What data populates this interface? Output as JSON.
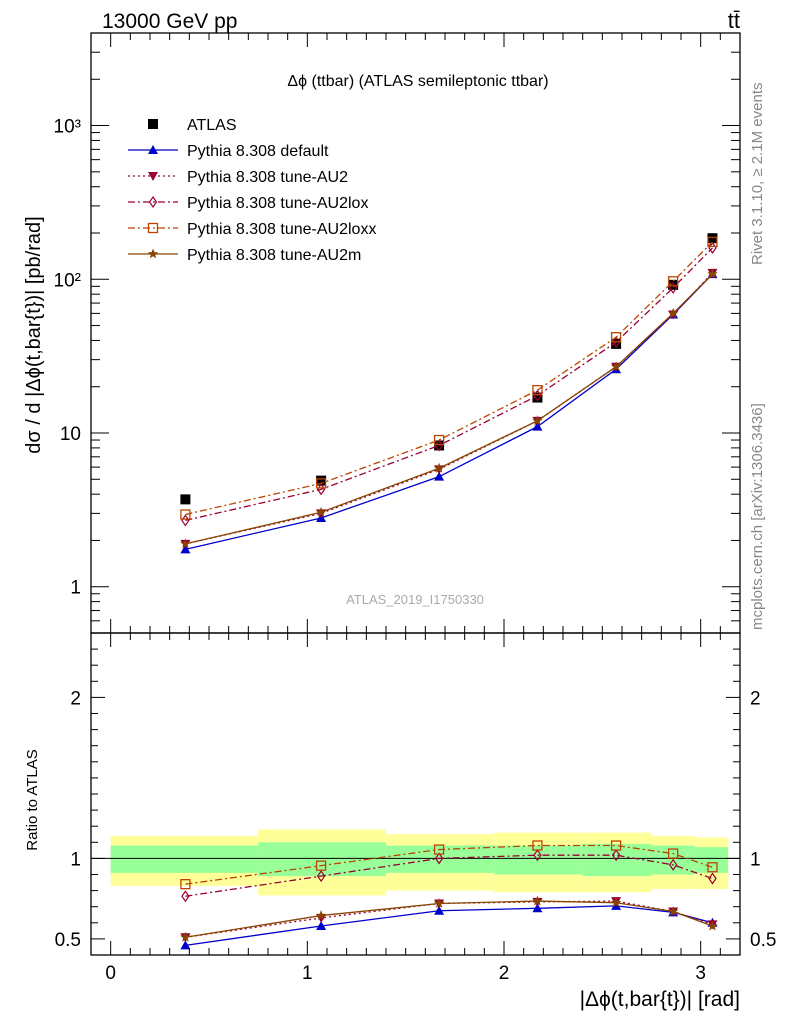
{
  "header": {
    "left": "13000 GeV pp",
    "right": "tt̄"
  },
  "side_labels": {
    "rivet": "Rivet 3.1.10, ≥ 2.1M events",
    "mcplots": "mcplots.cern.ch [arXiv:1306.3436]"
  },
  "chart_data": [
    {
      "type": "scatter",
      "title": "Δϕ (ttbar) (ATLAS semileptonic ttbar)",
      "watermark": "ATLAS_2019_I1750330",
      "xlabel": "|Δϕ(t,bar{t})| [rad]",
      "ylabel": "dσ / d |Δϕ(t,bar{t})| [pb/rad]",
      "yscale": "log",
      "ylim": [
        0.5,
        4000
      ],
      "xlim": [
        -0.1,
        3.2
      ],
      "y_ticks": [
        {
          "value": 1,
          "label": "1"
        },
        {
          "value": 10,
          "label": "10"
        },
        {
          "value": 100,
          "label": "10²"
        },
        {
          "value": 1000,
          "label": "10³"
        }
      ],
      "legend_position": "top-left",
      "x": [
        0.38,
        1.07,
        1.67,
        2.17,
        2.57,
        2.86,
        3.06
      ],
      "series": [
        {
          "name": "ATLAS",
          "color": "#000000",
          "marker": "filled-square",
          "line": "none",
          "values": [
            3.7,
            4.9,
            8.3,
            17,
            38,
            92,
            185
          ]
        },
        {
          "name": "Pythia 8.308 default",
          "color": "#0000cc",
          "marker": "filled-triangle-up",
          "line": "solid",
          "values": [
            1.75,
            2.8,
            5.2,
            11,
            26,
            59,
            108
          ]
        },
        {
          "name": "Pythia 8.308 tune-AU2",
          "color": "#990033",
          "marker": "filled-triangle-down",
          "line": "dotted",
          "values": [
            1.9,
            3.0,
            5.8,
            12,
            27,
            59,
            110
          ]
        },
        {
          "name": "Pythia 8.308 tune-AU2lox",
          "color": "#990033",
          "marker": "open-diamond",
          "line": "dashdot",
          "values": [
            2.7,
            4.3,
            8.3,
            17.5,
            39,
            88,
            160
          ]
        },
        {
          "name": "Pythia 8.308 tune-AU2loxx",
          "color": "#bb4400",
          "marker": "open-square",
          "line": "dashdot",
          "values": [
            2.95,
            4.7,
            9.0,
            19,
            42,
            97,
            175
          ]
        },
        {
          "name": "Pythia 8.308 tune-AU2m",
          "color": "#884400",
          "marker": "star",
          "line": "solid",
          "values": [
            1.9,
            3.05,
            5.9,
            12,
            27,
            60,
            108
          ]
        }
      ]
    },
    {
      "type": "scatter",
      "ylabel": "Ratio to ATLAS",
      "xlabel": "|Δϕ(t,bar{t})| [rad]",
      "ylim": [
        0.4,
        2.4
      ],
      "xlim": [
        -0.1,
        3.2
      ],
      "y_ticks": [
        {
          "value": 0.5,
          "label": "0.5"
        },
        {
          "value": 1,
          "label": "1"
        },
        {
          "value": 2,
          "label": "2"
        }
      ],
      "x_ticks": [
        {
          "value": 0,
          "label": "0"
        },
        {
          "value": 1,
          "label": "1"
        },
        {
          "value": 2,
          "label": "2"
        },
        {
          "value": 3,
          "label": "3"
        }
      ],
      "uncertainty_bands": [
        {
          "x_from": 0.0,
          "x_to": 0.75,
          "stat_low": 0.91,
          "stat_high": 1.08,
          "total_low": 0.83,
          "total_high": 1.14
        },
        {
          "x_from": 0.75,
          "x_to": 1.4,
          "stat_low": 0.89,
          "stat_high": 1.1,
          "total_low": 0.77,
          "total_high": 1.18
        },
        {
          "x_from": 1.4,
          "x_to": 1.95,
          "stat_low": 0.91,
          "stat_high": 1.08,
          "total_low": 0.8,
          "total_high": 1.15
        },
        {
          "x_from": 1.95,
          "x_to": 2.4,
          "stat_low": 0.9,
          "stat_high": 1.08,
          "total_low": 0.79,
          "total_high": 1.16
        },
        {
          "x_from": 2.4,
          "x_to": 2.75,
          "stat_low": 0.89,
          "stat_high": 1.09,
          "total_low": 0.79,
          "total_high": 1.16
        },
        {
          "x_from": 2.75,
          "x_to": 2.97,
          "stat_low": 0.9,
          "stat_high": 1.08,
          "total_low": 0.81,
          "total_high": 1.14
        },
        {
          "x_from": 2.97,
          "x_to": 3.14,
          "stat_low": 0.91,
          "stat_high": 1.07,
          "total_low": 0.81,
          "total_high": 1.13
        }
      ],
      "band_colors": {
        "stat": "#99ff99",
        "total": "#ffff99"
      },
      "x": [
        0.38,
        1.07,
        1.67,
        2.17,
        2.57,
        2.86,
        3.06
      ],
      "series": [
        {
          "name": "Pythia 8.308 default",
          "color": "#0000cc",
          "marker": "filled-triangle-up",
          "line": "solid",
          "values": [
            0.46,
            0.58,
            0.675,
            0.69,
            0.705,
            0.665,
            0.6
          ]
        },
        {
          "name": "Pythia 8.308 tune-AU2",
          "color": "#990033",
          "marker": "filled-triangle-down",
          "line": "dotted",
          "values": [
            0.51,
            0.63,
            0.72,
            0.73,
            0.735,
            0.67,
            0.59
          ]
        },
        {
          "name": "Pythia 8.308 tune-AU2lox",
          "color": "#990033",
          "marker": "open-diamond",
          "line": "dashdot",
          "values": [
            0.765,
            0.89,
            1.0,
            1.02,
            1.02,
            0.96,
            0.875
          ]
        },
        {
          "name": "Pythia 8.308 tune-AU2loxx",
          "color": "#bb4400",
          "marker": "open-square",
          "line": "dashdot",
          "values": [
            0.84,
            0.955,
            1.055,
            1.08,
            1.08,
            1.03,
            0.945
          ]
        },
        {
          "name": "Pythia 8.308 tune-AU2m",
          "color": "#884400",
          "marker": "star",
          "line": "solid",
          "values": [
            0.51,
            0.645,
            0.72,
            0.735,
            0.725,
            0.67,
            0.58
          ]
        }
      ]
    }
  ]
}
